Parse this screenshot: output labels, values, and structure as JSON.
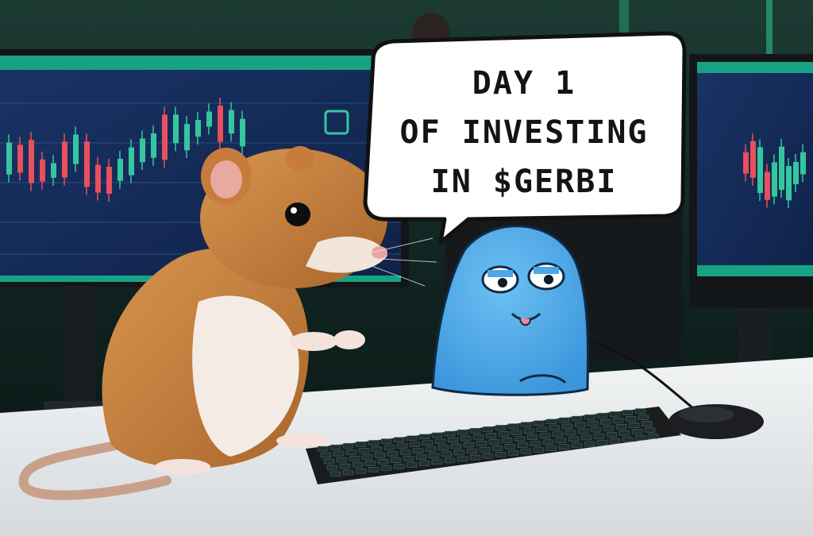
{
  "speech_bubble": {
    "line1": "DAY 1",
    "line2": "OF INVESTING",
    "line3": "IN $GERBI"
  },
  "colors": {
    "background": "#0e1a18",
    "monitor_screen": "#14294f",
    "accent_green": "#16b38a",
    "candle_up": "#35c6a0",
    "candle_down": "#e8505b",
    "desk": "#e9ecee",
    "gerbil_fur": "#c9823f",
    "character_blue": "#4aa8e8",
    "bubble_fill": "#ffffff",
    "bubble_outline": "#111111"
  },
  "icons": [
    "gerbil",
    "blue-cartoon-character",
    "keyboard",
    "mouse",
    "monitor",
    "candlestick-chart",
    "speech-bubble"
  ]
}
